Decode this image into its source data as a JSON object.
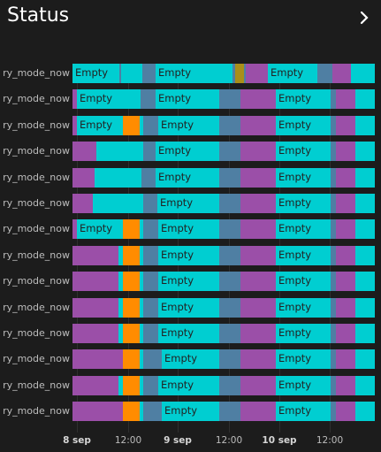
{
  "card": {
    "title": "Status"
  },
  "colors": {
    "empty": "#00ced1",
    "purple": "#9b4fa8",
    "grayblue": "#4f7fa3",
    "orange": "#ff8c00",
    "olive": "#a98f19"
  },
  "timeline": {
    "row_label": "ry_mode_now",
    "state_label": "Empty",
    "ticks": [
      {
        "label": "8 sep",
        "major": true
      },
      {
        "label": "12:00",
        "major": false
      },
      {
        "label": "9 sep",
        "major": true
      },
      {
        "label": "12:00",
        "major": false
      },
      {
        "label": "10 sep",
        "major": true
      },
      {
        "label": "12:00",
        "major": false
      }
    ],
    "rows": [
      {
        "label": "ry_mode_now",
        "segments": [
          [
            "empty",
            0,
            53,
            true
          ],
          [
            "grayblue",
            53,
            55
          ],
          [
            "empty",
            55,
            79
          ],
          [
            "grayblue",
            79,
            94
          ],
          [
            "empty",
            94,
            181,
            true
          ],
          [
            "grayblue",
            181,
            184
          ],
          [
            "olive",
            184,
            194
          ],
          [
            "grayblue",
            194,
            196
          ],
          [
            "purple",
            196,
            221
          ],
          [
            "empty",
            221,
            277,
            true
          ],
          [
            "grayblue",
            277,
            294
          ],
          [
            "purple",
            294,
            315
          ],
          [
            "empty",
            315,
            342
          ]
        ]
      },
      {
        "label": "ry_mode_now",
        "segments": [
          [
            "purple",
            0,
            5
          ],
          [
            "empty",
            5,
            77,
            true
          ],
          [
            "grayblue",
            77,
            94
          ],
          [
            "empty",
            94,
            166,
            true
          ],
          [
            "grayblue",
            166,
            190
          ],
          [
            "purple",
            190,
            230
          ],
          [
            "empty",
            230,
            292,
            true
          ],
          [
            "grayblue",
            292,
            298
          ],
          [
            "purple",
            298,
            320
          ],
          [
            "empty",
            320,
            342
          ]
        ]
      },
      {
        "label": "ry_mode_now",
        "segments": [
          [
            "purple",
            0,
            5
          ],
          [
            "empty",
            5,
            57,
            true
          ],
          [
            "orange",
            57,
            76
          ],
          [
            "empty",
            76,
            80
          ],
          [
            "grayblue",
            80,
            97
          ],
          [
            "empty",
            97,
            166,
            true
          ],
          [
            "grayblue",
            166,
            190
          ],
          [
            "purple",
            190,
            230
          ],
          [
            "empty",
            230,
            292,
            true
          ],
          [
            "grayblue",
            292,
            298
          ],
          [
            "purple",
            298,
            320
          ],
          [
            "empty",
            320,
            342
          ]
        ]
      },
      {
        "label": "ry_mode_now",
        "segments": [
          [
            "purple",
            0,
            27
          ],
          [
            "empty",
            27,
            80
          ],
          [
            "grayblue",
            80,
            94
          ],
          [
            "empty",
            94,
            166,
            true
          ],
          [
            "grayblue",
            166,
            190
          ],
          [
            "purple",
            190,
            230
          ],
          [
            "empty",
            230,
            292,
            true
          ],
          [
            "grayblue",
            292,
            298
          ],
          [
            "purple",
            298,
            320
          ],
          [
            "empty",
            320,
            342
          ]
        ]
      },
      {
        "label": "ry_mode_now",
        "segments": [
          [
            "purple",
            0,
            25
          ],
          [
            "empty",
            25,
            78
          ],
          [
            "grayblue",
            78,
            94
          ],
          [
            "empty",
            94,
            166,
            true
          ],
          [
            "grayblue",
            166,
            190
          ],
          [
            "purple",
            190,
            230
          ],
          [
            "empty",
            230,
            292,
            true
          ],
          [
            "grayblue",
            292,
            298
          ],
          [
            "purple",
            298,
            320
          ],
          [
            "empty",
            320,
            342
          ]
        ]
      },
      {
        "label": "ry_mode_now",
        "segments": [
          [
            "purple",
            0,
            23
          ],
          [
            "empty",
            23,
            80
          ],
          [
            "grayblue",
            80,
            96
          ],
          [
            "empty",
            96,
            166,
            true
          ],
          [
            "grayblue",
            166,
            190
          ],
          [
            "purple",
            190,
            230
          ],
          [
            "empty",
            230,
            292,
            true
          ],
          [
            "grayblue",
            292,
            298
          ],
          [
            "purple",
            298,
            320
          ],
          [
            "empty",
            320,
            342
          ]
        ]
      },
      {
        "label": "ry_mode_now",
        "segments": [
          [
            "purple",
            0,
            5
          ],
          [
            "empty",
            5,
            57,
            true
          ],
          [
            "orange",
            57,
            76
          ],
          [
            "empty",
            76,
            80
          ],
          [
            "grayblue",
            80,
            97
          ],
          [
            "empty",
            97,
            166,
            true
          ],
          [
            "grayblue",
            166,
            190
          ],
          [
            "purple",
            190,
            230
          ],
          [
            "empty",
            230,
            292,
            true
          ],
          [
            "grayblue",
            292,
            298
          ],
          [
            "purple",
            298,
            320
          ],
          [
            "empty",
            320,
            342
          ]
        ]
      },
      {
        "label": "ry_mode_now",
        "segments": [
          [
            "purple",
            0,
            52
          ],
          [
            "empty",
            52,
            57
          ],
          [
            "orange",
            57,
            76
          ],
          [
            "empty",
            76,
            80
          ],
          [
            "grayblue",
            80,
            97
          ],
          [
            "empty",
            97,
            166,
            true
          ],
          [
            "grayblue",
            166,
            190
          ],
          [
            "purple",
            190,
            230
          ],
          [
            "empty",
            230,
            292,
            true
          ],
          [
            "grayblue",
            292,
            298
          ],
          [
            "purple",
            298,
            320
          ],
          [
            "empty",
            320,
            342
          ]
        ]
      },
      {
        "label": "ry_mode_now",
        "segments": [
          [
            "purple",
            0,
            52
          ],
          [
            "empty",
            52,
            57
          ],
          [
            "orange",
            57,
            76
          ],
          [
            "empty",
            76,
            80
          ],
          [
            "grayblue",
            80,
            97
          ],
          [
            "empty",
            97,
            166,
            true
          ],
          [
            "grayblue",
            166,
            190
          ],
          [
            "purple",
            190,
            230
          ],
          [
            "empty",
            230,
            292,
            true
          ],
          [
            "grayblue",
            292,
            298
          ],
          [
            "purple",
            298,
            320
          ],
          [
            "empty",
            320,
            342
          ]
        ]
      },
      {
        "label": "ry_mode_now",
        "segments": [
          [
            "purple",
            0,
            52
          ],
          [
            "empty",
            52,
            57
          ],
          [
            "orange",
            57,
            76
          ],
          [
            "empty",
            76,
            80
          ],
          [
            "grayblue",
            80,
            97
          ],
          [
            "empty",
            97,
            166,
            true
          ],
          [
            "grayblue",
            166,
            190
          ],
          [
            "purple",
            190,
            230
          ],
          [
            "empty",
            230,
            292,
            true
          ],
          [
            "grayblue",
            292,
            298
          ],
          [
            "purple",
            298,
            320
          ],
          [
            "empty",
            320,
            342
          ]
        ]
      },
      {
        "label": "ry_mode_now",
        "segments": [
          [
            "purple",
            0,
            52
          ],
          [
            "empty",
            52,
            57
          ],
          [
            "orange",
            57,
            76
          ],
          [
            "empty",
            76,
            80
          ],
          [
            "grayblue",
            80,
            97
          ],
          [
            "empty",
            97,
            166,
            true
          ],
          [
            "grayblue",
            166,
            190
          ],
          [
            "purple",
            190,
            230
          ],
          [
            "empty",
            230,
            292,
            true
          ],
          [
            "grayblue",
            292,
            298
          ],
          [
            "purple",
            298,
            320
          ],
          [
            "empty",
            320,
            342
          ]
        ]
      },
      {
        "label": "ry_mode_now",
        "segments": [
          [
            "purple",
            0,
            57
          ],
          [
            "orange",
            57,
            76
          ],
          [
            "empty",
            76,
            80
          ],
          [
            "grayblue",
            80,
            101
          ],
          [
            "empty",
            101,
            166,
            true
          ],
          [
            "grayblue",
            166,
            190
          ],
          [
            "purple",
            190,
            230
          ],
          [
            "empty",
            230,
            292,
            true
          ],
          [
            "grayblue",
            292,
            298
          ],
          [
            "purple",
            298,
            320
          ],
          [
            "empty",
            320,
            342
          ]
        ]
      },
      {
        "label": "ry_mode_now",
        "segments": [
          [
            "purple",
            0,
            52
          ],
          [
            "empty",
            52,
            57
          ],
          [
            "orange",
            57,
            76
          ],
          [
            "empty",
            76,
            80
          ],
          [
            "grayblue",
            80,
            97
          ],
          [
            "empty",
            97,
            166,
            true
          ],
          [
            "grayblue",
            166,
            190
          ],
          [
            "purple",
            190,
            230
          ],
          [
            "empty",
            230,
            292,
            true
          ],
          [
            "grayblue",
            292,
            298
          ],
          [
            "purple",
            298,
            320
          ],
          [
            "empty",
            320,
            342
          ]
        ]
      },
      {
        "label": "ry_mode_now",
        "segments": [
          [
            "purple",
            0,
            57
          ],
          [
            "orange",
            57,
            76
          ],
          [
            "empty",
            76,
            80
          ],
          [
            "grayblue",
            80,
            101
          ],
          [
            "empty",
            101,
            166,
            true
          ],
          [
            "grayblue",
            166,
            190
          ],
          [
            "purple",
            190,
            230
          ],
          [
            "empty",
            230,
            292,
            true
          ],
          [
            "grayblue",
            292,
            298
          ],
          [
            "purple",
            298,
            320
          ],
          [
            "empty",
            320,
            342
          ]
        ]
      }
    ]
  }
}
